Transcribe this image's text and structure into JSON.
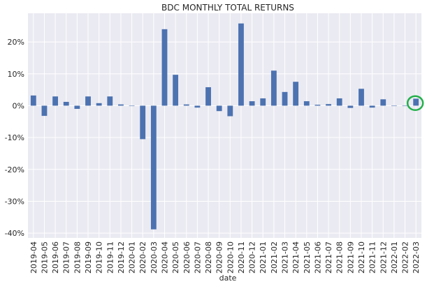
{
  "chart_data": {
    "type": "bar",
    "title": "BDC MONTHLY TOTAL RETURNS",
    "xlabel": "date",
    "ylabel": "",
    "ylim": [
      -41.5,
      29
    ],
    "yticks": [
      -40,
      -30,
      -20,
      -10,
      0,
      10,
      20
    ],
    "ytick_labels": [
      "-40%",
      "-30%",
      "-20%",
      "-10%",
      "0%",
      "10%",
      "20%"
    ],
    "grid": true,
    "categories": [
      "2019-04",
      "2019-05",
      "2019-06",
      "2019-07",
      "2019-08",
      "2019-09",
      "2019-10",
      "2019-11",
      "2019-12",
      "2020-01",
      "2020-02",
      "2020-03",
      "2020-04",
      "2020-05",
      "2020-06",
      "2020-07",
      "2020-08",
      "2020-09",
      "2020-10",
      "2020-11",
      "2020-12",
      "2021-01",
      "2021-02",
      "2021-03",
      "2021-04",
      "2021-05",
      "2021-06",
      "2021-07",
      "2021-08",
      "2021-09",
      "2021-10",
      "2021-11",
      "2021-12",
      "2022-01",
      "2022-02",
      "2022-03"
    ],
    "values": [
      3.2,
      -3.2,
      2.9,
      1.2,
      -1.0,
      2.9,
      0.8,
      2.9,
      0.4,
      -0.1,
      -10.5,
      -38.8,
      24.0,
      9.7,
      0.4,
      -0.6,
      5.8,
      -1.7,
      -3.3,
      25.8,
      1.4,
      2.3,
      11.0,
      4.3,
      7.5,
      1.4,
      0.3,
      0.5,
      2.3,
      -0.7,
      5.3,
      -0.6,
      2.0,
      -0.1,
      -0.1,
      2.2
    ],
    "colors": {
      "bar": "#4c72b0",
      "background": "#eaeaf2",
      "grid": "#ffffff",
      "highlight": "#22b04a"
    },
    "highlight_index": 35
  }
}
